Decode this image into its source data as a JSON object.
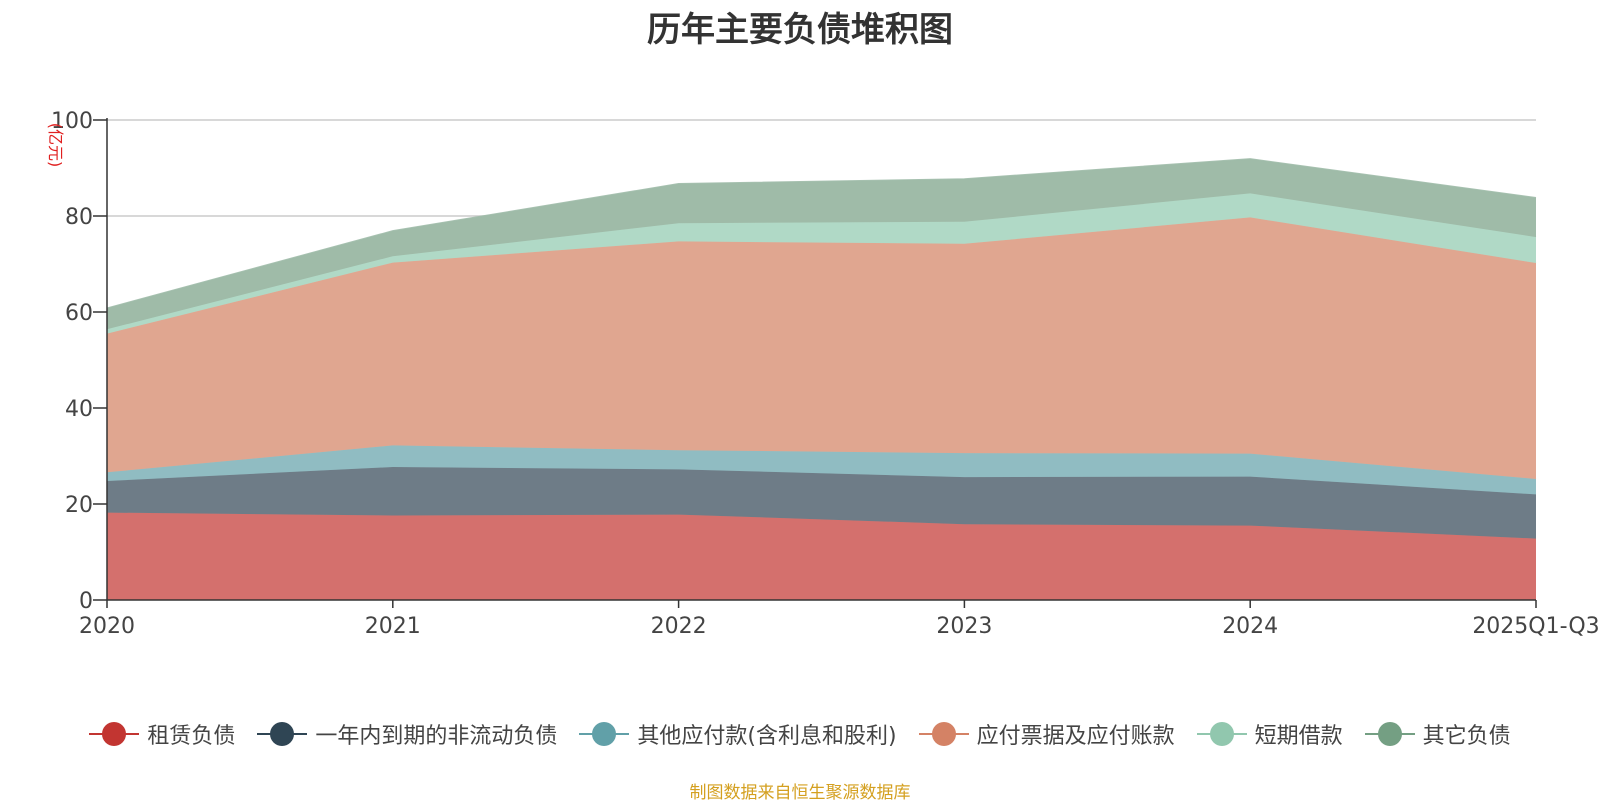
{
  "title": "历年主要负债堆积图",
  "unit_label": "(亿元)",
  "source_note": "制图数据来自恒生聚源数据库",
  "colors": {
    "title": "#333333",
    "unit": "#e02020",
    "source": "#d4a020",
    "axis": "#333333",
    "grid": "#cccccc"
  },
  "chart_data": {
    "type": "area",
    "stacked": true,
    "title": "历年主要负债堆积图",
    "xlabel": "",
    "ylabel": "(亿元)",
    "ylim": [
      0,
      100
    ],
    "yticks": [
      0,
      20,
      40,
      60,
      80,
      100
    ],
    "categories": [
      "2020",
      "2021",
      "2022",
      "2023",
      "2024",
      "2025Q1-Q3"
    ],
    "series": [
      {
        "name": "租赁负债",
        "color": "#c23531",
        "fill": "#d4706d",
        "values": [
          18.2,
          17.6,
          17.8,
          15.8,
          15.5,
          12.8
        ]
      },
      {
        "name": "一年内到期的非流动负债",
        "color": "#2f4554",
        "fill": "#6e7c87",
        "values": [
          6.6,
          10.1,
          9.4,
          9.8,
          10.2,
          9.2
        ]
      },
      {
        "name": "其他应付款(含利息和股利)",
        "color": "#61a0a8",
        "fill": "#90bcc2",
        "values": [
          1.8,
          4.5,
          4.0,
          5.0,
          4.8,
          3.2
        ]
      },
      {
        "name": "应付票据及应付账款",
        "color": "#d48265",
        "fill": "#e0a690",
        "values": [
          28.9,
          38.1,
          43.5,
          43.6,
          49.2,
          45.0
        ]
      },
      {
        "name": "短期借款",
        "color": "#91c7ae",
        "fill": "#b0d9c6",
        "values": [
          0.9,
          1.3,
          3.8,
          4.6,
          5.0,
          5.4
        ]
      },
      {
        "name": "其它负债",
        "color": "#749f83",
        "fill": "#9fbba8",
        "values": [
          4.4,
          5.3,
          8.2,
          8.9,
          7.2,
          8.2
        ]
      }
    ]
  }
}
